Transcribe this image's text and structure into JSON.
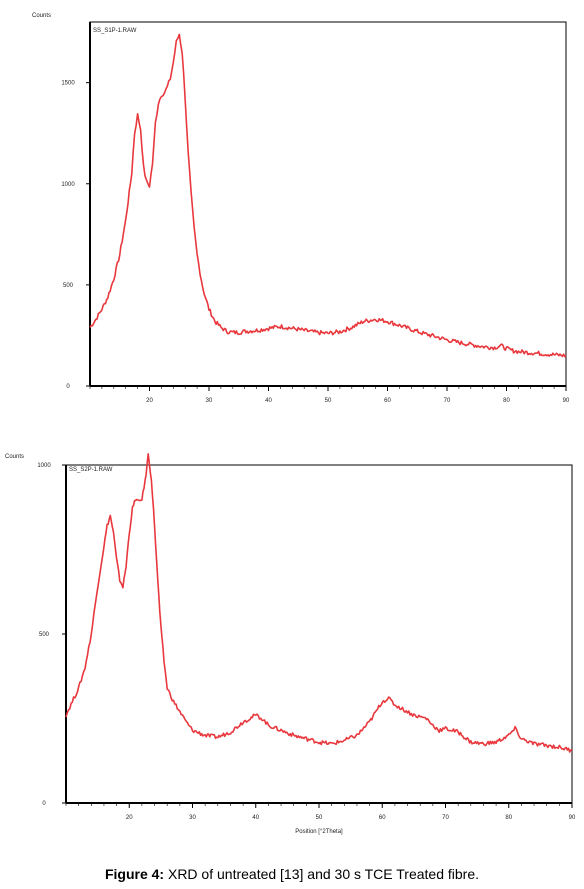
{
  "caption": {
    "label": "Figure 4:",
    "text": "XRD of untreated [13] and 30 s TCE Treated fibre."
  },
  "chart_data": [
    {
      "type": "line",
      "ylabel": "Counts",
      "legend": "SS_S1P-1.RAW",
      "xlim": [
        10,
        90
      ],
      "ylim": [
        0,
        1800
      ],
      "x_ticks": [
        20,
        30,
        40,
        50,
        60,
        70,
        80,
        90
      ],
      "x_tick_labels": [
        "20",
        "30",
        "40",
        "50",
        "60",
        "70",
        "80",
        "90"
      ],
      "y_ticks": [
        0,
        500,
        1000,
        1500
      ],
      "y_tick_labels": [
        "0",
        "500",
        "1000",
        "1500"
      ],
      "series_color": "#e8383d",
      "series": [
        {
          "x": [
            10,
            11,
            12,
            13,
            14,
            15,
            16,
            17,
            17.5,
            18,
            18.5,
            19,
            19.5,
            20,
            20.5,
            21,
            21.5,
            22,
            22.5,
            23,
            23.5,
            24,
            24.5,
            25,
            25.5,
            26,
            26.5,
            27,
            27.5,
            28,
            28.5,
            29,
            30,
            31,
            32,
            33,
            34,
            35,
            36,
            38,
            40,
            42,
            44,
            46,
            48,
            50,
            52,
            54,
            56,
            58,
            60,
            61,
            62,
            64,
            66,
            68,
            70,
            72,
            74,
            76,
            78,
            79,
            80,
            81,
            82,
            84,
            86,
            88,
            90
          ],
          "y": [
            290,
            330,
            380,
            440,
            530,
            650,
            820,
            1050,
            1250,
            1340,
            1270,
            1080,
            1010,
            990,
            1100,
            1300,
            1400,
            1440,
            1450,
            1480,
            1520,
            1600,
            1700,
            1740,
            1650,
            1420,
            1150,
            950,
            780,
            650,
            560,
            480,
            380,
            320,
            290,
            270,
            265,
            265,
            270,
            275,
            285,
            295,
            285,
            275,
            265,
            260,
            268,
            290,
            320,
            330,
            320,
            310,
            300,
            280,
            260,
            245,
            228,
            215,
            205,
            195,
            190,
            200,
            185,
            175,
            170,
            165,
            160,
            155,
            150
          ]
        }
      ]
    },
    {
      "type": "line",
      "ylabel": "Counts",
      "legend": "SS_S2P-1.RAW",
      "xlim": [
        10,
        90
      ],
      "ylim": [
        0,
        1000
      ],
      "x_ticks": [
        20,
        30,
        40,
        50,
        60,
        70,
        80,
        90
      ],
      "x_tick_labels": [
        "20",
        "30",
        "40",
        "50",
        "60",
        "70",
        "80",
        "90"
      ],
      "y_ticks": [
        0,
        500,
        1000
      ],
      "y_tick_labels": [
        "0",
        "500",
        "1000"
      ],
      "xlabel": "Position [°2Theta]",
      "series_color": "#e8383d",
      "series": [
        {
          "x": [
            10,
            11,
            12,
            13,
            14,
            15,
            16,
            16.5,
            17,
            17.5,
            18,
            18.5,
            19,
            19.5,
            20,
            20.5,
            21,
            21.5,
            22,
            22.5,
            23,
            23.5,
            24,
            24.5,
            25,
            25.5,
            26,
            27,
            28,
            29,
            30,
            32,
            34,
            36,
            38,
            40,
            41,
            42,
            44,
            46,
            48,
            50,
            52,
            54,
            56,
            58,
            60,
            61,
            62,
            63,
            64,
            65,
            66,
            67,
            68,
            69,
            70,
            72,
            74,
            76,
            78,
            80,
            81,
            82,
            84,
            86,
            88,
            90
          ],
          "y": [
            260,
            300,
            340,
            400,
            500,
            640,
            760,
            820,
            850,
            800,
            720,
            660,
            640,
            700,
            800,
            870,
            900,
            890,
            900,
            950,
            1030,
            960,
            820,
            660,
            520,
            420,
            340,
            300,
            270,
            240,
            215,
            200,
            195,
            210,
            240,
            260,
            250,
            230,
            215,
            200,
            190,
            180,
            175,
            185,
            200,
            240,
            300,
            310,
            290,
            280,
            270,
            260,
            255,
            250,
            230,
            215,
            220,
            210,
            180,
            175,
            180,
            200,
            220,
            190,
            175,
            170,
            165,
            155
          ]
        }
      ]
    }
  ]
}
